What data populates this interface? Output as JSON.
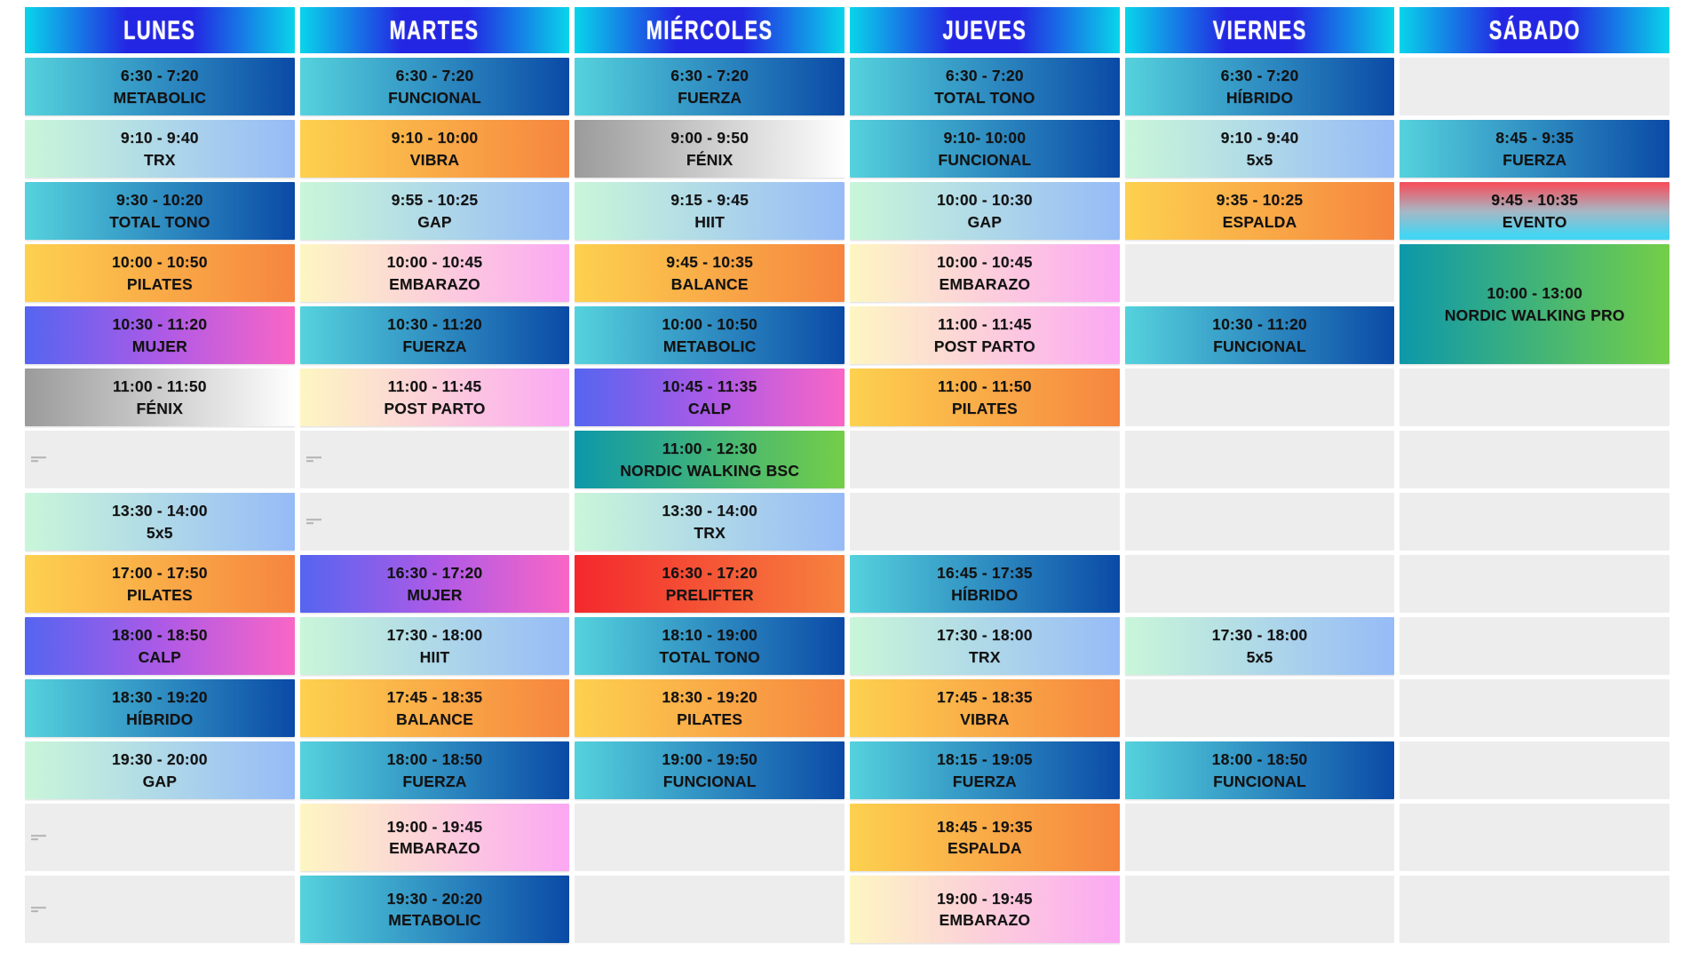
{
  "palette": {
    "header": [
      "#09d4ea",
      "#2326e2"
    ],
    "blue": [
      "#55d2dd",
      "#0a4aa6"
    ],
    "mint": [
      "#c9f6d9",
      "#96bbf7"
    ],
    "orange": [
      "#fdd14f",
      "#f6853f"
    ],
    "pink": [
      "#fdf6c2",
      "#fba8f3"
    ],
    "purple": [
      "#5565f0",
      "#af5ae6",
      "#f966c5"
    ],
    "gray": [
      "#9b9b9b",
      "#fefefe"
    ],
    "red": [
      "#f4282d",
      "#f6823f"
    ],
    "green": [
      "#0d98aa",
      "#74ce48"
    ],
    "evento": [
      "#f3515f",
      "#a8b6c3",
      "#45d5f2"
    ],
    "empty": "#ededee",
    "cell_text": "#121212",
    "header_text": "#ffffff"
  },
  "days": [
    {
      "label": "LUNES",
      "rows": [
        {
          "time": "6:30 - 7:20",
          "name": "METABOLIC",
          "color": "blue"
        },
        {
          "time": "9:10 - 9:40",
          "name": "TRX",
          "color": "mint"
        },
        {
          "time": "9:30 - 10:20",
          "name": "TOTAL TONO",
          "color": "blue"
        },
        {
          "time": "10:00 - 10:50",
          "name": "PILATES",
          "color": "orange"
        },
        {
          "time": "10:30 - 11:20",
          "name": "MUJER",
          "color": "purple"
        },
        {
          "time": "11:00 - 11:50",
          "name": "FÉNIX",
          "color": "gray"
        },
        {
          "mark": true
        },
        {
          "time": "13:30 - 14:00",
          "name": "5x5",
          "color": "mint"
        },
        {
          "time": "17:00 - 17:50",
          "name": "PILATES",
          "color": "orange"
        },
        {
          "time": "18:00 - 18:50",
          "name": "CALP",
          "color": "purple"
        },
        {
          "time": "18:30 - 19:20",
          "name": "HÍBRIDO",
          "color": "blue"
        },
        {
          "time": "19:30 - 20:00",
          "name": "GAP",
          "color": "mint"
        },
        {
          "mark": true
        },
        {
          "mark": true
        }
      ]
    },
    {
      "label": "MARTES",
      "rows": [
        {
          "time": "6:30 - 7:20",
          "name": "FUNCIONAL",
          "color": "blue"
        },
        {
          "time": "9:10 - 10:00",
          "name": "VIBRA",
          "color": "orange"
        },
        {
          "time": "9:55 - 10:25",
          "name": "GAP",
          "color": "mint"
        },
        {
          "time": "10:00 - 10:45",
          "name": "EMBARAZO",
          "color": "pink"
        },
        {
          "time": "10:30 - 11:20",
          "name": "FUERZA",
          "color": "blue"
        },
        {
          "time": "11:00 - 11:45",
          "name": "POST PARTO",
          "color": "pink"
        },
        {
          "mark": true
        },
        {
          "mark": true
        },
        {
          "time": "16:30 - 17:20",
          "name": "MUJER",
          "color": "purple"
        },
        {
          "time": "17:30 - 18:00",
          "name": "HIIT",
          "color": "mint"
        },
        {
          "time": "17:45 - 18:35",
          "name": "BALANCE",
          "color": "orange"
        },
        {
          "time": "18:00 - 18:50",
          "name": "FUERZA",
          "color": "blue"
        },
        {
          "time": "19:00 - 19:45",
          "name": "EMBARAZO",
          "color": "pink"
        },
        {
          "time": "19:30 - 20:20",
          "name": "METABOLIC",
          "color": "blue"
        }
      ]
    },
    {
      "label": "MIÉRCOLES",
      "rows": [
        {
          "time": "6:30 - 7:20",
          "name": "FUERZA",
          "color": "blue"
        },
        {
          "time": "9:00 - 9:50",
          "name": "FÉNIX",
          "color": "gray"
        },
        {
          "time": "9:15 - 9:45",
          "name": "HIIT",
          "color": "mint"
        },
        {
          "time": "9:45 - 10:35",
          "name": "BALANCE",
          "color": "orange"
        },
        {
          "time": "10:00 - 10:50",
          "name": "METABOLIC",
          "color": "blue"
        },
        {
          "time": "10:45 - 11:35",
          "name": "CALP",
          "color": "purple"
        },
        {
          "time": "11:00 - 12:30",
          "name": "NORDIC WALKING BSC",
          "color": "green"
        },
        {
          "time": "13:30 - 14:00",
          "name": "TRX",
          "color": "mint"
        },
        {
          "time": "16:30 - 17:20",
          "name": "PRELIFTER",
          "color": "red"
        },
        {
          "time": "18:10 - 19:00",
          "name": "TOTAL TONO",
          "color": "blue"
        },
        {
          "time": "18:30 - 19:20",
          "name": "PILATES",
          "color": "orange"
        },
        {
          "time": "19:00 - 19:50",
          "name": "FUNCIONAL",
          "color": "blue"
        },
        null,
        null
      ]
    },
    {
      "label": "JUEVES",
      "rows": [
        {
          "time": "6:30 - 7:20",
          "name": "TOTAL TONO",
          "color": "blue"
        },
        {
          "time": "9:10- 10:00",
          "name": "FUNCIONAL",
          "color": "blue"
        },
        {
          "time": "10:00 - 10:30",
          "name": "GAP",
          "color": "mint"
        },
        {
          "time": "10:00 - 10:45",
          "name": "EMBARAZO",
          "color": "pink"
        },
        {
          "time": "11:00 - 11:45",
          "name": "POST PARTO",
          "color": "pink"
        },
        {
          "time": "11:00 - 11:50",
          "name": "PILATES",
          "color": "orange"
        },
        null,
        null,
        {
          "time": "16:45 - 17:35",
          "name": "HÍBRIDO",
          "color": "blue"
        },
        {
          "time": "17:30 - 18:00",
          "name": "TRX",
          "color": "mint"
        },
        {
          "time": "17:45 - 18:35",
          "name": "VIBRA",
          "color": "orange"
        },
        {
          "time": "18:15 - 19:05",
          "name": "FUERZA",
          "color": "blue"
        },
        {
          "time": "18:45 - 19:35",
          "name": "ESPALDA",
          "color": "orange"
        },
        {
          "time": "19:00 - 19:45",
          "name": "EMBARAZO",
          "color": "pink"
        }
      ]
    },
    {
      "label": "VIERNES",
      "rows": [
        {
          "time": "6:30 - 7:20",
          "name": "HÍBRIDO",
          "color": "blue"
        },
        {
          "time": "9:10 - 9:40",
          "name": "5x5",
          "color": "mint"
        },
        {
          "time": "9:35 - 10:25",
          "name": "ESPALDA",
          "color": "orange"
        },
        null,
        {
          "time": "10:30 - 11:20",
          "name": "FUNCIONAL",
          "color": "blue"
        },
        null,
        null,
        null,
        null,
        {
          "time": "17:30 - 18:00",
          "name": "5x5",
          "color": "mint"
        },
        null,
        {
          "time": "18:00 - 18:50",
          "name": "FUNCIONAL",
          "color": "blue"
        },
        null,
        null
      ]
    },
    {
      "label": "SÁBADO",
      "rows": [
        null,
        {
          "time": "8:45 - 9:35",
          "name": "FUERZA",
          "color": "blue"
        },
        {
          "time": "9:45 - 10:35",
          "name": "EVENTO",
          "color": "evento"
        },
        {
          "time": "10:00 - 13:00",
          "name": "NORDIC WALKING PRO",
          "color": "green",
          "span": 2
        },
        null,
        null,
        null,
        null,
        null,
        null,
        null,
        null,
        null,
        null
      ]
    }
  ]
}
